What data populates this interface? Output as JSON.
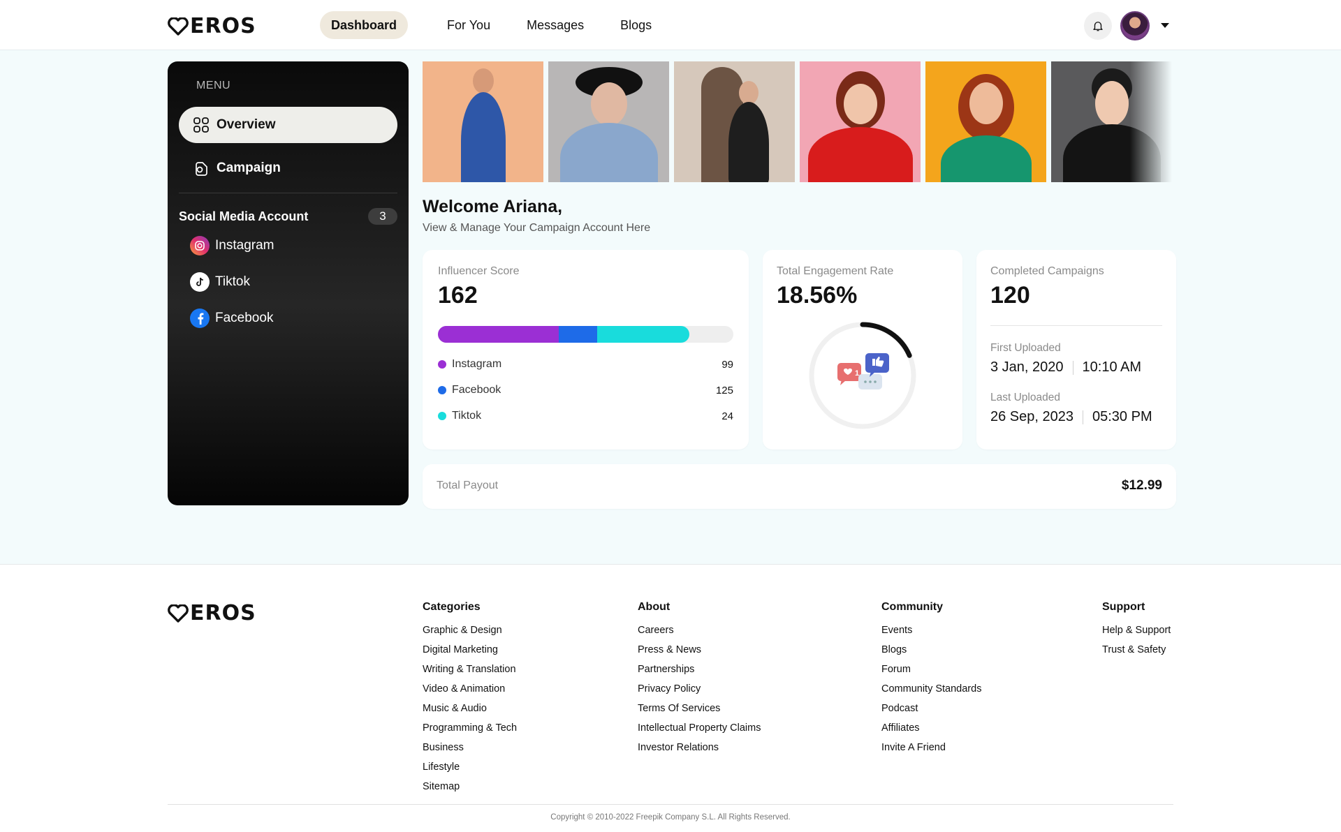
{
  "brand": {
    "name": "EROS"
  },
  "nav": {
    "items": [
      {
        "label": "Dashboard",
        "active": true
      },
      {
        "label": "For You",
        "active": false
      },
      {
        "label": "Messages",
        "active": false
      },
      {
        "label": "Blogs",
        "active": false
      }
    ]
  },
  "sidebar": {
    "menu_title": "MENU",
    "items": [
      {
        "label": "Overview",
        "icon": "grid-icon",
        "active": true
      },
      {
        "label": "Campaign",
        "icon": "campaign-icon",
        "active": false
      }
    ],
    "social_title": "Social Media Account",
    "social_count": "3",
    "socials": [
      {
        "label": "Instagram",
        "icon": "instagram-icon"
      },
      {
        "label": "Tiktok",
        "icon": "tiktok-icon"
      },
      {
        "label": "Facebook",
        "icon": "facebook-icon"
      }
    ]
  },
  "welcome": {
    "title": "Welcome Ariana,",
    "subtitle": "View & Manage Your Campaign Account Here"
  },
  "influencer_score": {
    "label": "Influencer Score",
    "value": "162",
    "bar_fill_fractions": {
      "instagram": 0.41,
      "facebook": 0.13,
      "tiktok": 0.31
    },
    "rows": [
      {
        "label": "Instagram",
        "value": "99",
        "color": "#9b2fd4"
      },
      {
        "label": "Facebook",
        "value": "125",
        "color": "#1e6be8"
      },
      {
        "label": "Tiktok",
        "value": "24",
        "color": "#19dcdc"
      }
    ]
  },
  "engagement": {
    "label": "Total Engagement Rate",
    "value": "18.56%",
    "ring_fraction": 0.1856,
    "like_badge_count": "1"
  },
  "campaigns": {
    "label": "Completed Campaigns",
    "value": "120",
    "first_label": "First Uploaded",
    "first_date": "3 Jan, 2020",
    "first_time": "10:10 AM",
    "last_label": "Last Uploaded",
    "last_date": "26 Sep, 2023",
    "last_time": "05:30 PM"
  },
  "payout": {
    "label": "Total Payout",
    "value": "$12.99"
  },
  "footer": {
    "columns": [
      {
        "title": "Categories",
        "links": [
          "Graphic & Design",
          "Digital Marketing",
          "Writing & Translation",
          "Video & Animation",
          "Music & Audio",
          "Programming & Tech",
          "Business",
          "Lifestyle",
          "Sitemap"
        ]
      },
      {
        "title": "About",
        "links": [
          "Careers",
          "Press & News",
          "Partnerships",
          "Privacy Policy",
          "Terms Of Services",
          "Intellectual Property Claims",
          "Investor Relations"
        ]
      },
      {
        "title": "Community",
        "links": [
          "Events",
          "Blogs",
          "Forum",
          "Community Standards",
          "Podcast",
          "Affiliates",
          "Invite A Friend"
        ]
      },
      {
        "title": "Support",
        "links": [
          "Help & Support",
          "Trust & Safety"
        ]
      }
    ],
    "copyright": "Copyright © 2010-2022 Freepik Company S.L. All Rights Reserved."
  },
  "colors": {
    "accent_beige": "#efe9dd",
    "instagram": "#9b2fd4",
    "facebook": "#1e6be8",
    "tiktok": "#19dcdc"
  }
}
